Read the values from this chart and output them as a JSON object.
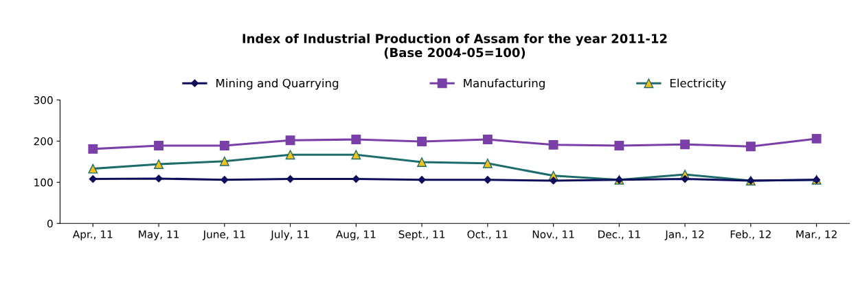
{
  "chart_data": {
    "type": "line",
    "title": "Index of Industrial Production of Assam for the year 2011-12\n(Base 2004-05=100)",
    "categories": [
      "Apr., 11",
      "May, 11",
      "June, 11",
      "July, 11",
      "Aug, 11",
      "Sept., 11",
      "Oct., 11",
      "Nov., 11",
      "Dec., 11",
      "Jan., 12",
      "Feb., 12",
      "Mar., 12"
    ],
    "series": [
      {
        "name": "Mining and Quarrying",
        "color": "#0d0d5c",
        "marker": "diamond",
        "values": [
          108,
          109,
          106,
          108,
          108,
          106,
          106,
          104,
          106,
          108,
          104,
          106
        ]
      },
      {
        "name": "Manufacturing",
        "color": "#7b3fa8",
        "marker": "square",
        "values": [
          181,
          189,
          189,
          202,
          204,
          199,
          204,
          191,
          189,
          192,
          187,
          206
        ]
      },
      {
        "name": "Electricity",
        "color": "#1e6b6b",
        "marker": "triangle",
        "values": [
          133,
          144,
          151,
          167,
          167,
          149,
          146,
          116,
          106,
          119,
          104,
          106
        ]
      }
    ],
    "ylim": [
      0,
      300
    ],
    "yticks": [
      0,
      100,
      200,
      300
    ],
    "grid": false,
    "legend": "top"
  }
}
